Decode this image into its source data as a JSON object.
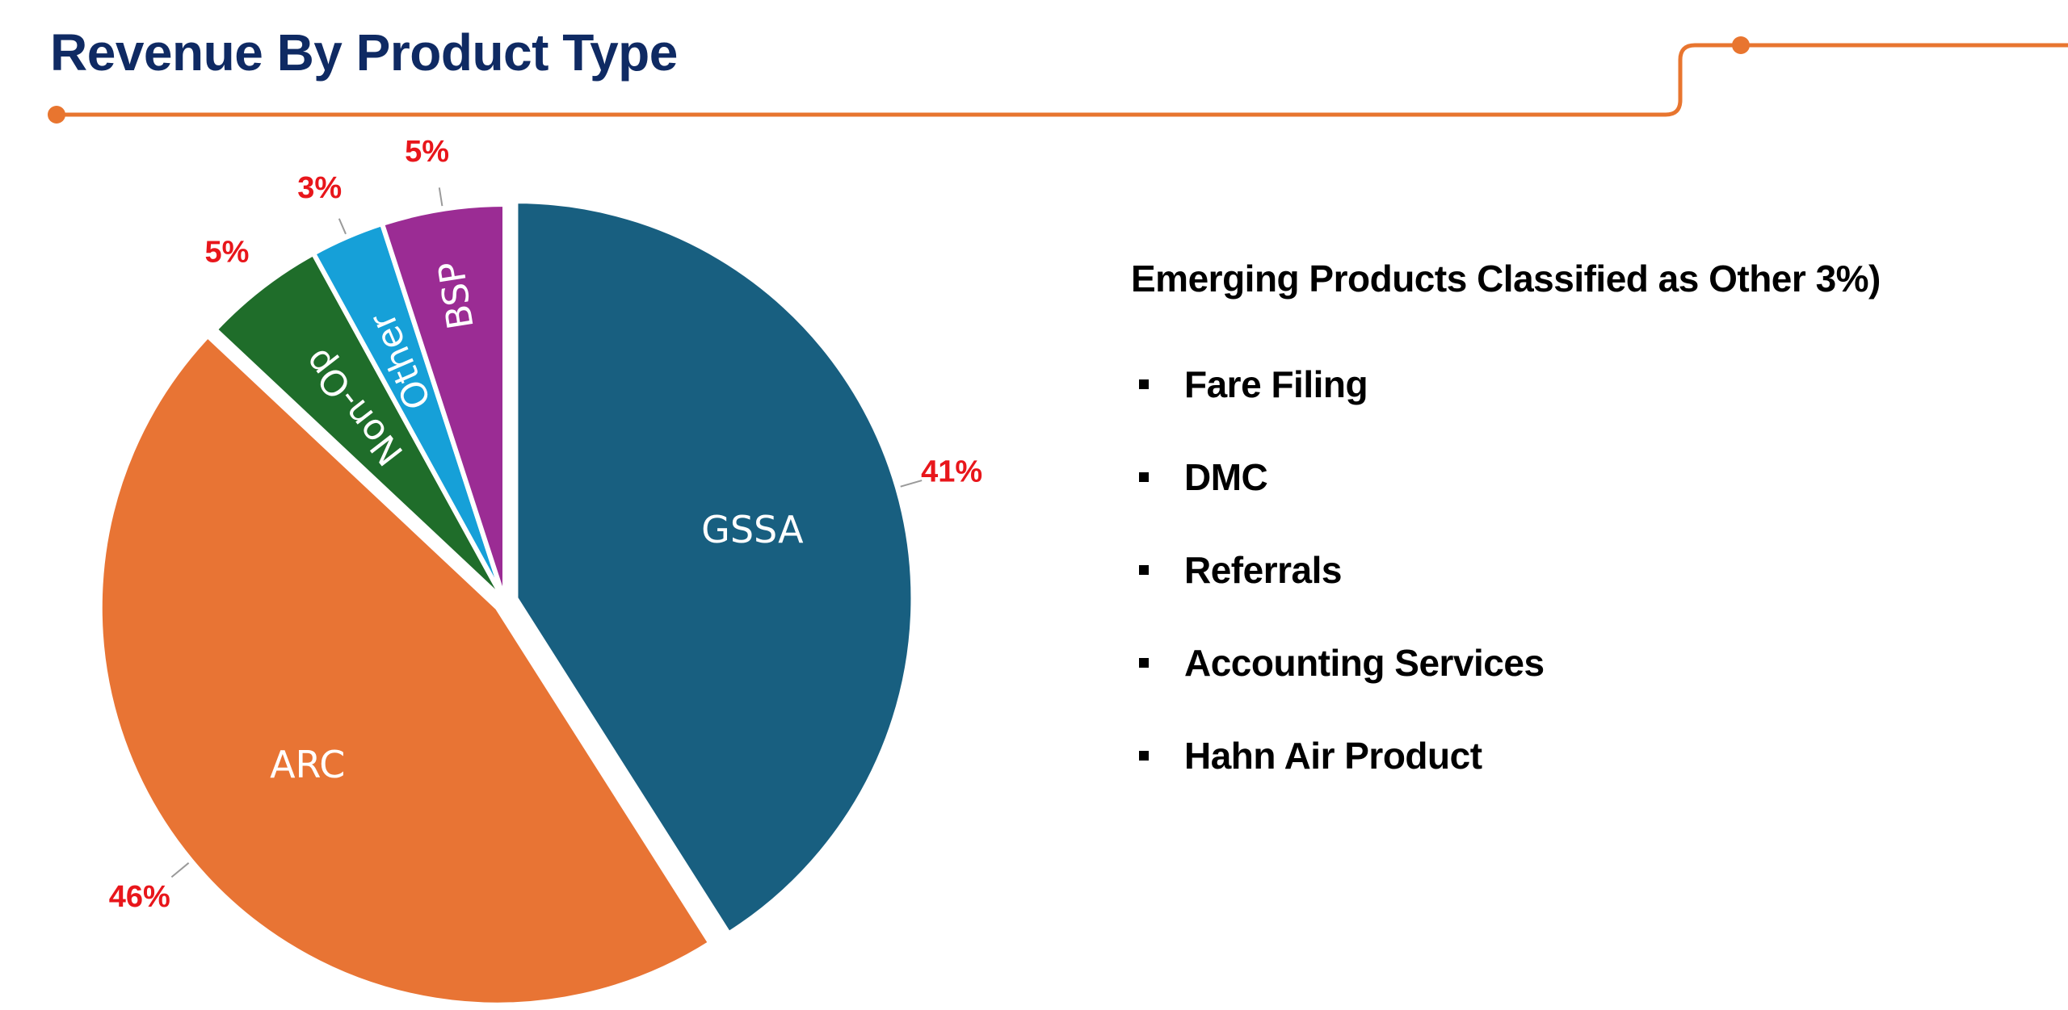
{
  "header": {
    "title": "Revenue By Product Type"
  },
  "colors": {
    "title": "#0f2a63",
    "accent_line": "#e8752f",
    "percent_label": "#e8161b"
  },
  "chart_data": {
    "type": "pie",
    "title": "Revenue By Product Type",
    "slices": [
      {
        "label": "GSSA",
        "value": 41,
        "display": "41%",
        "color": "#185f80"
      },
      {
        "label": "ARC",
        "value": 46,
        "display": "46%",
        "color": "#e87434"
      },
      {
        "label": "Non-Op",
        "value": 5,
        "display": "5%",
        "color": "#1f6d2a"
      },
      {
        "label": "Other",
        "value": 3,
        "display": "3%",
        "color": "#16a0d8"
      },
      {
        "label": "BSP",
        "value": 5,
        "display": "5%",
        "color": "#9b2c94"
      }
    ],
    "legend": "none",
    "start_angle": "12 o'clock",
    "direction": "clockwise"
  },
  "side_panel": {
    "heading": "Emerging Products Classified as Other 3%)",
    "items": [
      "Fare Filing",
      "DMC",
      "Referrals",
      "Accounting Services",
      "Hahn Air Product"
    ]
  }
}
